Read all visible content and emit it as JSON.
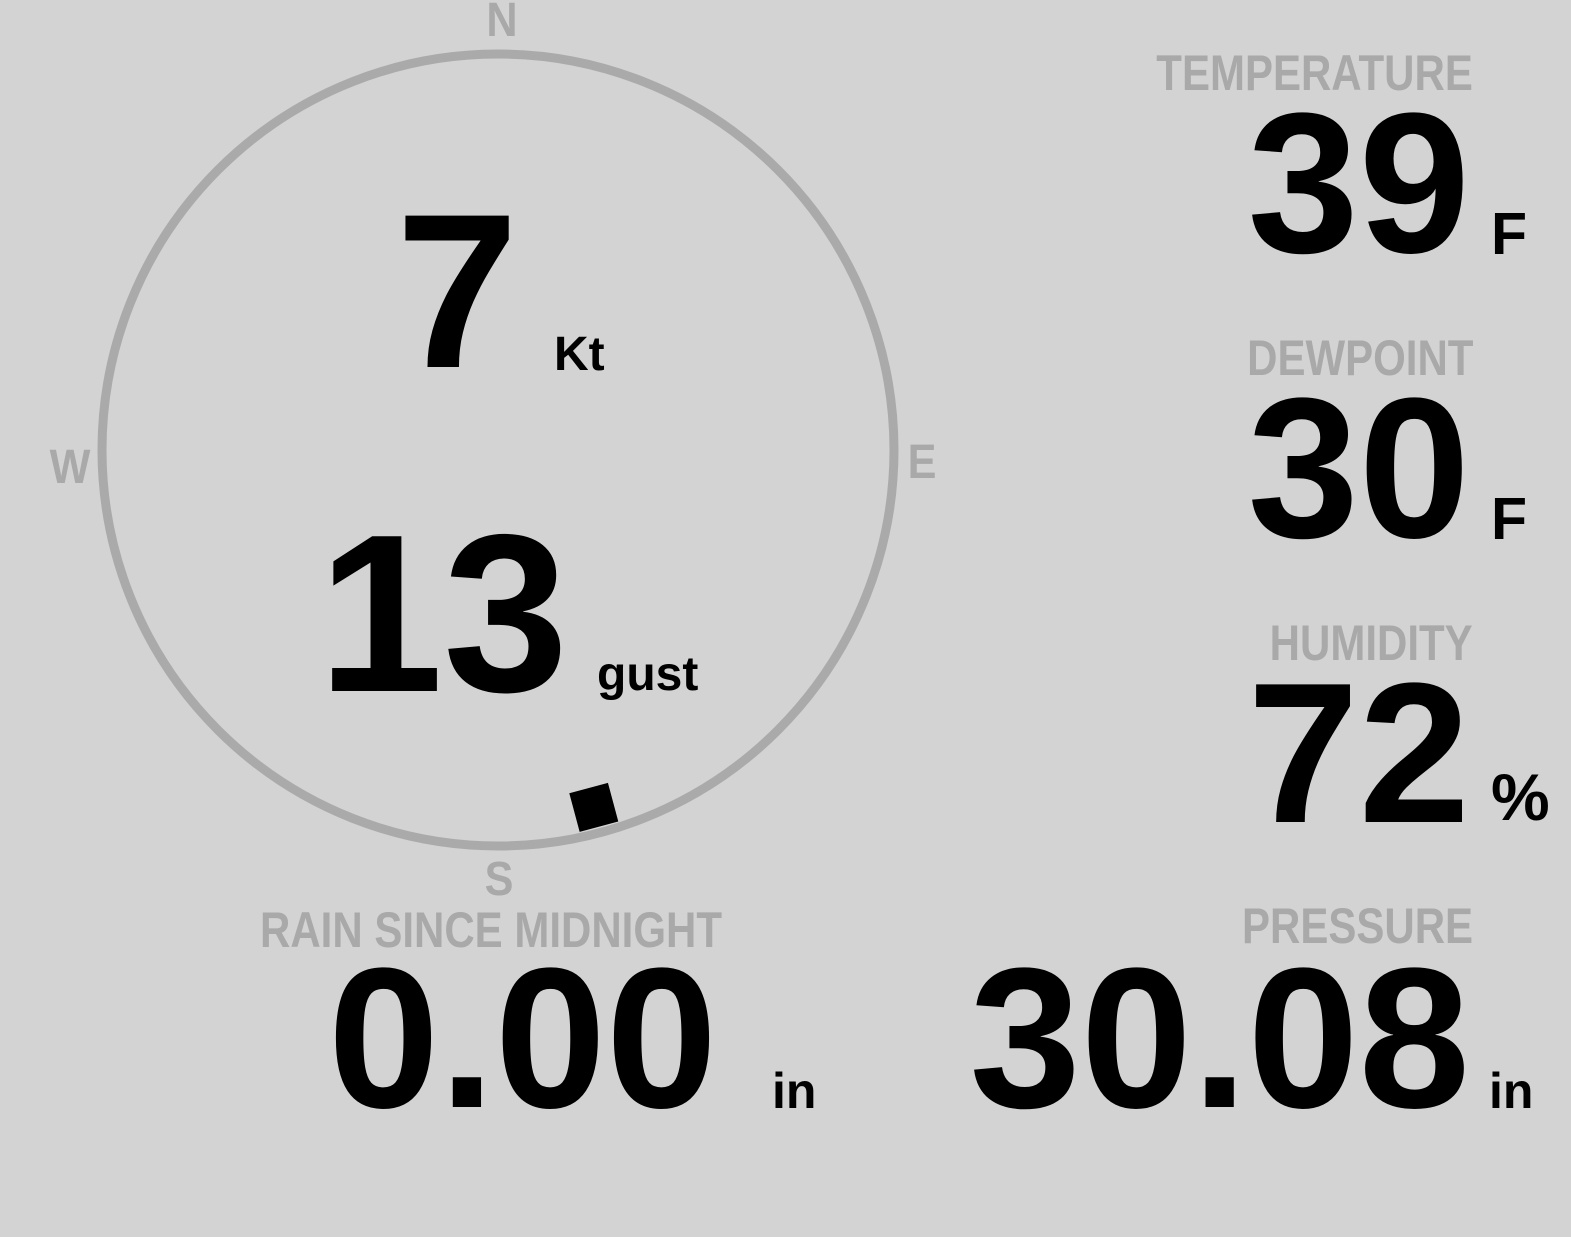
{
  "colors": {
    "background": "#d3d3d3",
    "label": "#a9a9a9",
    "value": "#000000",
    "ring": "#aaaaaa"
  },
  "compass": {
    "north": "N",
    "south": "S",
    "east": "E",
    "west": "W",
    "wind_direction_deg": 165
  },
  "wind": {
    "speed": "7",
    "speed_unit": "Kt",
    "gust": "13",
    "gust_label": "gust"
  },
  "temperature": {
    "label": "TEMPERATURE",
    "value": "39",
    "unit": "F"
  },
  "dewpoint": {
    "label": "DEWPOINT",
    "value": "30",
    "unit": "F"
  },
  "humidity": {
    "label": "HUMIDITY",
    "value": "72",
    "unit": "%"
  },
  "rain": {
    "label": "RAIN SINCE MIDNIGHT",
    "value": "0.00",
    "unit": "in"
  },
  "pressure": {
    "label": "PRESSURE",
    "value": "30.08",
    "unit": "in"
  }
}
